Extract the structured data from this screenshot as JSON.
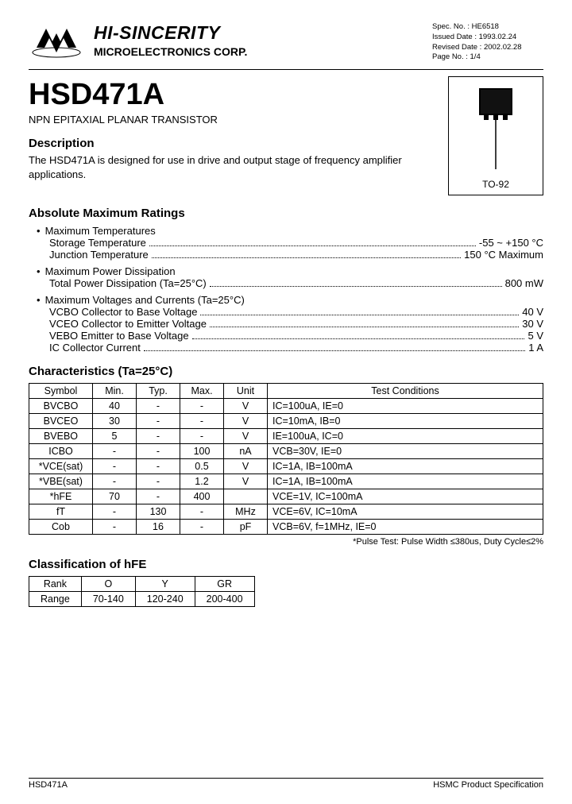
{
  "company": {
    "name": "HI-SINCERITY",
    "sub": "MICROELECTRONICS CORP."
  },
  "docmeta": {
    "spec": "Spec. No. : HE6518",
    "issued": "Issued Date : 1993.02.24",
    "revised": "Revised Date : 2002.02.28",
    "page": "Page No. : 1/4"
  },
  "part": {
    "number": "HSD471A",
    "subtitle": "NPN EPITAXIAL PLANAR TRANSISTOR"
  },
  "package": {
    "label": "TO-92"
  },
  "description": {
    "heading": "Description",
    "text": "The HSD471A is designed for use in drive and output stage of frequency amplifier applications."
  },
  "amr": {
    "heading": "Absolute Maximum Ratings",
    "groups": [
      {
        "title": "Maximum Temperatures",
        "rows": [
          {
            "label": "Storage Temperature",
            "value": "-55 ~ +150 °C"
          },
          {
            "label": "Junction Temperature",
            "value": "150 °C Maximum"
          }
        ]
      },
      {
        "title": "Maximum Power Dissipation",
        "rows": [
          {
            "label": "Total Power Dissipation (Ta=25°C)",
            "value": "800 mW"
          }
        ]
      },
      {
        "title": "Maximum Voltages and Currents (Ta=25°C)",
        "rows": [
          {
            "label": "VCBO Collector to Base Voltage",
            "value": "40 V"
          },
          {
            "label": "VCEO Collector to Emitter Voltage",
            "value": "30 V"
          },
          {
            "label": "VEBO Emitter to Base Voltage",
            "value": "5 V"
          },
          {
            "label": "IC Collector Current",
            "value": "1 A"
          }
        ]
      }
    ]
  },
  "char": {
    "heading": "Characteristics (Ta=25°C)",
    "columns": [
      "Symbol",
      "Min.",
      "Typ.",
      "Max.",
      "Unit",
      "Test Conditions"
    ],
    "rows": [
      [
        "BVCBO",
        "40",
        "-",
        "-",
        "V",
        "IC=100uA, IE=0"
      ],
      [
        "BVCEO",
        "30",
        "-",
        "-",
        "V",
        "IC=10mA, IB=0"
      ],
      [
        "BVEBO",
        "5",
        "-",
        "-",
        "V",
        "IE=100uA, IC=0"
      ],
      [
        "ICBO",
        "-",
        "-",
        "100",
        "nA",
        "VCB=30V, IE=0"
      ],
      [
        "*VCE(sat)",
        "-",
        "-",
        "0.5",
        "V",
        "IC=1A, IB=100mA"
      ],
      [
        "*VBE(sat)",
        "-",
        "-",
        "1.2",
        "V",
        "IC=1A, IB=100mA"
      ],
      [
        "*hFE",
        "70",
        "-",
        "400",
        "",
        "VCE=1V, IC=100mA"
      ],
      [
        "fT",
        "-",
        "130",
        "-",
        "MHz",
        "VCE=6V, IC=10mA"
      ],
      [
        "Cob",
        "-",
        "16",
        "-",
        "pF",
        "VCB=6V, f=1MHz, IE=0"
      ]
    ],
    "footnote": "*Pulse Test: Pulse Width ≤380us, Duty Cycle≤2%"
  },
  "hfe": {
    "heading": "Classification of hFE",
    "columns": [
      "Rank",
      "O",
      "Y",
      "GR"
    ],
    "row": [
      "Range",
      "70-140",
      "120-240",
      "200-400"
    ]
  },
  "footer": {
    "left": "HSD471A",
    "right": "HSMC Product Specification"
  },
  "style": {
    "text_color": "#000000",
    "background": "#ffffff",
    "border_color": "#000000",
    "font_family": "Arial, Helvetica, sans-serif",
    "part_fontsize": 38,
    "section_fontsize": 15,
    "body_fontsize": 13,
    "table_fontsize": 12.5
  }
}
